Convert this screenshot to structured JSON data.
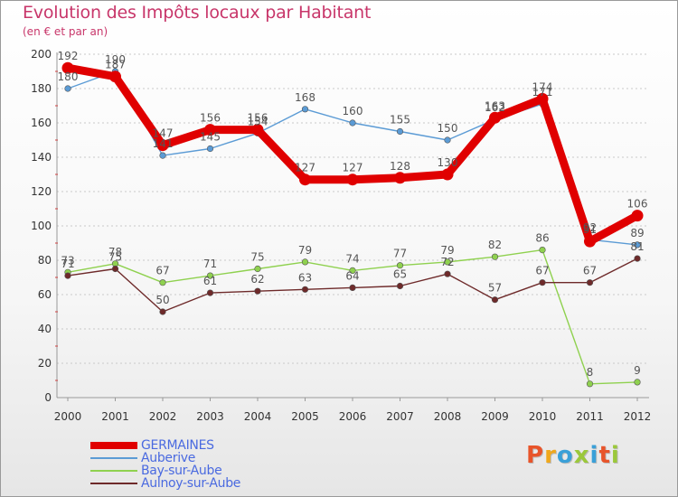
{
  "title": "Evolution des Impôts locaux par Habitant",
  "subtitle": "(en € et par an)",
  "logo": {
    "text": "Proxiti",
    "letter_colors": [
      "#e8542a",
      "#f0a81c",
      "#3aa0d8",
      "#9bc83a",
      "#3aa0d8",
      "#e8542a",
      "#9bc83a"
    ]
  },
  "chart_data": {
    "type": "line",
    "title": "Evolution des Impôts locaux par Habitant",
    "subtitle": "(en € et par an)",
    "xlabel": "",
    "ylabel": "",
    "ylim": [
      0,
      200
    ],
    "yticks": [
      "0",
      "20",
      "40",
      "60",
      "80",
      "100",
      "120",
      "140",
      "160",
      "180",
      "200"
    ],
    "ytick_values": [
      0,
      20,
      40,
      60,
      80,
      100,
      120,
      140,
      160,
      180,
      200
    ],
    "categories": [
      "2000",
      "2001",
      "2002",
      "2003",
      "2004",
      "2005",
      "2006",
      "2007",
      "2008",
      "2009",
      "2010",
      "2011",
      "2012"
    ],
    "grid": "horizontal dashed",
    "legend_position": "bottom-left",
    "series": [
      {
        "name": "GERMAINES",
        "color": "#e00000",
        "width": "thick",
        "values": [
          192,
          187,
          147,
          156,
          156,
          127,
          127,
          128,
          130,
          163,
          174,
          91,
          106
        ],
        "labels": [
          "192",
          "187",
          "147",
          "156",
          "156",
          "127",
          "127",
          "128",
          "130",
          "163",
          "174",
          "91",
          "106"
        ]
      },
      {
        "name": "Auberive",
        "color": "#5b9bd5",
        "width": "thin",
        "values": [
          180,
          190,
          141,
          145,
          154,
          168,
          160,
          155,
          150,
          162,
          171,
          92,
          89
        ],
        "labels": [
          "180",
          "190",
          "141",
          "145",
          "154",
          "168",
          "160",
          "155",
          "150",
          "162",
          "171",
          "92",
          "89"
        ]
      },
      {
        "name": "Bay-sur-Aube",
        "color": "#8fd14f",
        "width": "thin",
        "values": [
          73,
          78,
          67,
          71,
          75,
          79,
          74,
          77,
          79,
          82,
          86,
          8,
          9
        ],
        "labels": [
          "73",
          "78",
          "67",
          "71",
          "75",
          "79",
          "74",
          "77",
          "79",
          "82",
          "86",
          "8",
          "9"
        ]
      },
      {
        "name": "Aulnoy-sur-Aube",
        "color": "#6e2a2a",
        "width": "thin",
        "values": [
          71,
          75,
          50,
          61,
          62,
          63,
          64,
          65,
          72,
          57,
          67,
          67,
          81
        ],
        "labels": [
          "71",
          "75",
          "50",
          "61",
          "62",
          "63",
          "64",
          "65",
          "72",
          "57",
          "67",
          "67",
          "81"
        ]
      }
    ]
  }
}
